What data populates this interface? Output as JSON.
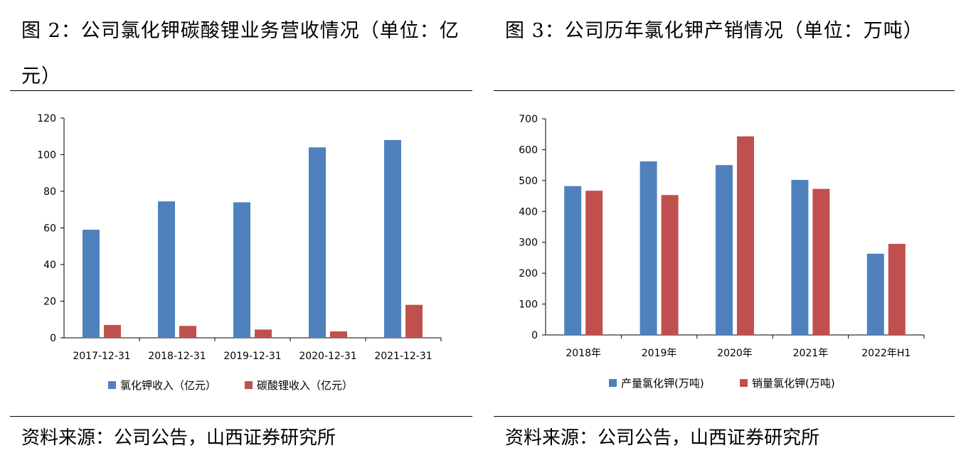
{
  "chart_data": [
    {
      "type": "bar",
      "title": "图 2：公司氯化钾碳酸锂业务营收情况（单位：亿元）",
      "categories": [
        "2017-12-31",
        "2018-12-31",
        "2019-12-31",
        "2020-12-31",
        "2021-12-31"
      ],
      "series": [
        {
          "name": "氯化钾收入（亿元）",
          "values": [
            59,
            74.5,
            74,
            104,
            108
          ],
          "color": "#4F81BD"
        },
        {
          "name": "碳酸锂收入（亿元）",
          "values": [
            7,
            6.5,
            4.5,
            3.5,
            18
          ],
          "color": "#C0504D"
        }
      ],
      "ylim": [
        0,
        120
      ],
      "yticks": [
        "0",
        "20",
        "40",
        "60",
        "80",
        "100",
        "120"
      ],
      "legend": "bottom",
      "grid": false,
      "source": "资料来源：公司公告，山西证券研究所"
    },
    {
      "type": "bar",
      "title": "图 3：公司历年氯化钾产销情况（单位：万吨）",
      "categories": [
        "2018年",
        "2019年",
        "2020年",
        "2021年",
        "2022年H1"
      ],
      "series": [
        {
          "name": "产量氯化钾(万吨)",
          "values": [
            482,
            562,
            550,
            502,
            263
          ],
          "color": "#4F81BD"
        },
        {
          "name": "销量氯化钾(万吨)",
          "values": [
            467,
            453,
            643,
            473,
            295
          ],
          "color": "#C0504D"
        }
      ],
      "ylim": [
        0,
        700
      ],
      "yticks": [
        "0",
        "100",
        "200",
        "300",
        "400",
        "500",
        "600",
        "700"
      ],
      "legend": "bottom",
      "grid": false,
      "source": "资料来源：公司公告，山西证券研究所"
    }
  ]
}
